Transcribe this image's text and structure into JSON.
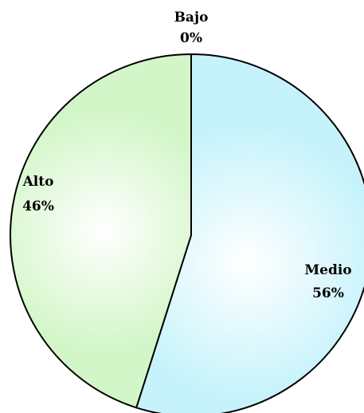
{
  "chart_data": {
    "type": "pie",
    "title": "",
    "start_angle_deg": 0,
    "direction": "clockwise",
    "slices": [
      {
        "label": "Bajo",
        "value_label": "0%",
        "value": 0
      },
      {
        "label": "Medio",
        "value_label": "56%",
        "value": 56
      },
      {
        "label": "Alto",
        "value_label": "46%",
        "value": 46
      }
    ],
    "colors": {
      "Bajo": {
        "center": "#ffffff",
        "edge": "#ffffff"
      },
      "Medio": {
        "center": "#ffffff",
        "edge": "#c6f3fb"
      },
      "Alto": {
        "center": "#ffffff",
        "edge": "#d3f6c8"
      }
    },
    "outline_color": "#000000"
  }
}
